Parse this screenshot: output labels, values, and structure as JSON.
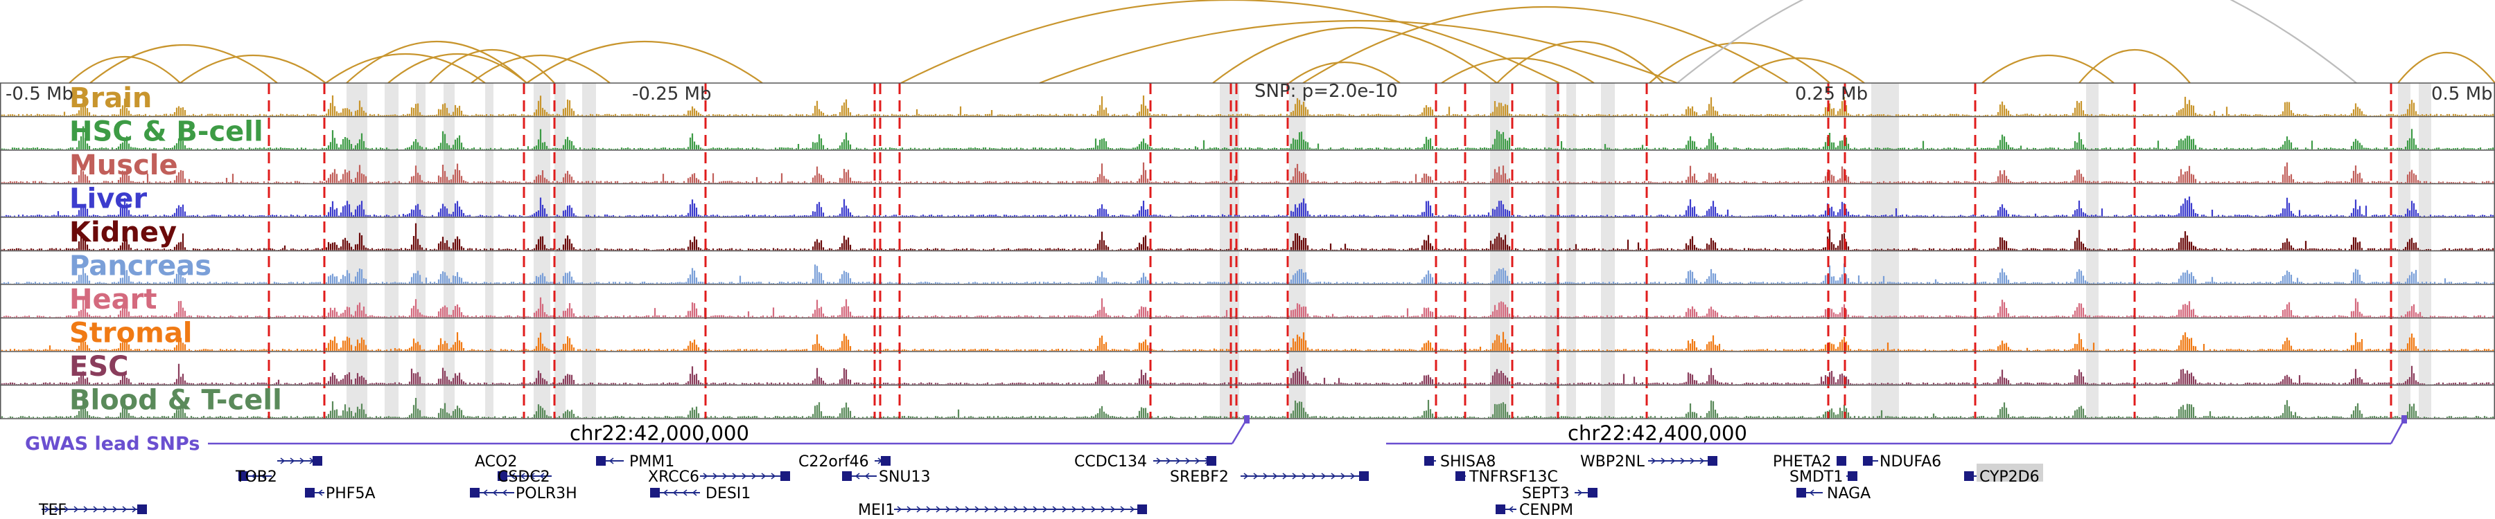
{
  "tracks": [
    {
      "label": "Brain",
      "color": "#c8952d"
    },
    {
      "label": "HSC & B-cell",
      "color": "#3d9b45"
    },
    {
      "label": "Muscle",
      "color": "#c15f5a"
    },
    {
      "label": "Liver",
      "color": "#3c3ccd"
    },
    {
      "label": "Kidney",
      "color": "#6b0a0a"
    },
    {
      "label": "Pancreas",
      "color": "#7a9fd8"
    },
    {
      "label": "Heart",
      "color": "#d46a7e"
    },
    {
      "label": "Stromal",
      "color": "#f07a14"
    },
    {
      "label": "ESC",
      "color": "#8a3d5c"
    },
    {
      "label": "Blood & T-cell",
      "color": "#5a8a5a"
    }
  ],
  "scale_labels": {
    "left": "-0.5 Mb",
    "mid_left": "-0.25 Mb",
    "snp": "SNP: p=2.0e-10",
    "mid_right": "0.25 Mb",
    "right": "0.5 Mb"
  },
  "coordinates": [
    "chr22:42,000,000",
    "chr22:42,400,000"
  ],
  "gwas_label": "GWAS lead SNPs",
  "gwas_color": "#6a4fd0",
  "highlight_color": "#e6e6e6",
  "marker_color": "#e01c1c",
  "arc_colors": {
    "main": "#c8952d",
    "secondary": "#bdbdbd"
  },
  "genes": [
    {
      "name": "ACO2",
      "highlighted": false
    },
    {
      "name": "TOB2",
      "highlighted": false
    },
    {
      "name": "PHF5A",
      "highlighted": false
    },
    {
      "name": "TEF",
      "highlighted": false
    },
    {
      "name": "CSDC2",
      "highlighted": false
    },
    {
      "name": "POLR3H",
      "highlighted": false
    },
    {
      "name": "PMM1",
      "highlighted": false
    },
    {
      "name": "XRCC6",
      "highlighted": false
    },
    {
      "name": "DESI1",
      "highlighted": false
    },
    {
      "name": "C22orf46",
      "highlighted": false
    },
    {
      "name": "SNU13",
      "highlighted": false
    },
    {
      "name": "MEI1",
      "highlighted": false
    },
    {
      "name": "CCDC134",
      "highlighted": false
    },
    {
      "name": "SREBF2",
      "highlighted": false
    },
    {
      "name": "SHISA8",
      "highlighted": false
    },
    {
      "name": "TNFRSF13C",
      "highlighted": false
    },
    {
      "name": "SEPT3",
      "highlighted": false
    },
    {
      "name": "CENPM",
      "highlighted": false
    },
    {
      "name": "WBP2NL",
      "highlighted": false
    },
    {
      "name": "PHETA2",
      "highlighted": false
    },
    {
      "name": "NDUFA6",
      "highlighted": false
    },
    {
      "name": "SMDT1",
      "highlighted": false
    },
    {
      "name": "NAGA",
      "highlighted": false
    },
    {
      "name": "CYP2D6",
      "highlighted": true
    }
  ]
}
